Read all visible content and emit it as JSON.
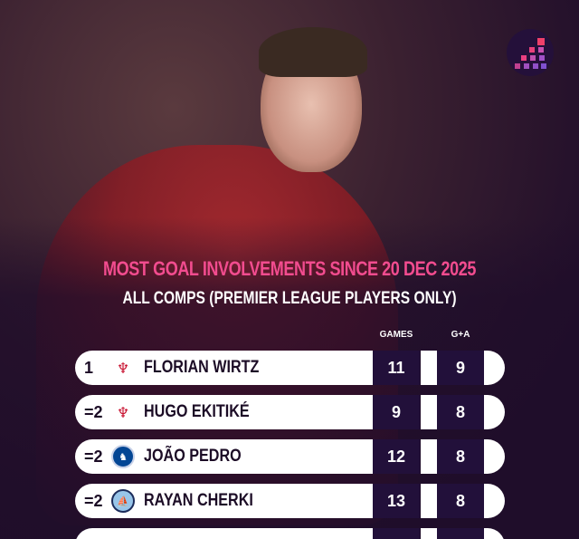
{
  "title": "MOST GOAL INVOLVEMENTS SINCE 20 DEC 2025",
  "subtitle": "ALL COMPS (PREMIER LEAGUE PLAYERS ONLY)",
  "columns": {
    "games": "GAMES",
    "ga": "G+A"
  },
  "colors": {
    "title": "#f24c8f",
    "background": "#1f0d2a",
    "row": "#ffffff",
    "cell": "#22103a"
  },
  "rows": [
    {
      "rank": "1",
      "club": "liverpool-crest",
      "player": "FLORIAN WIRTZ",
      "games": "11",
      "ga": "9"
    },
    {
      "rank": "=2",
      "club": "liverpool-crest",
      "player": "HUGO EKITIKÉ",
      "games": "9",
      "ga": "8"
    },
    {
      "rank": "=2",
      "club": "chelsea-crest",
      "player": "JOÃO PEDRO",
      "games": "12",
      "ga": "8"
    },
    {
      "rank": "=2",
      "club": "man-city-crest",
      "player": "RAYAN CHERKI",
      "games": "13",
      "ga": "8"
    }
  ]
}
